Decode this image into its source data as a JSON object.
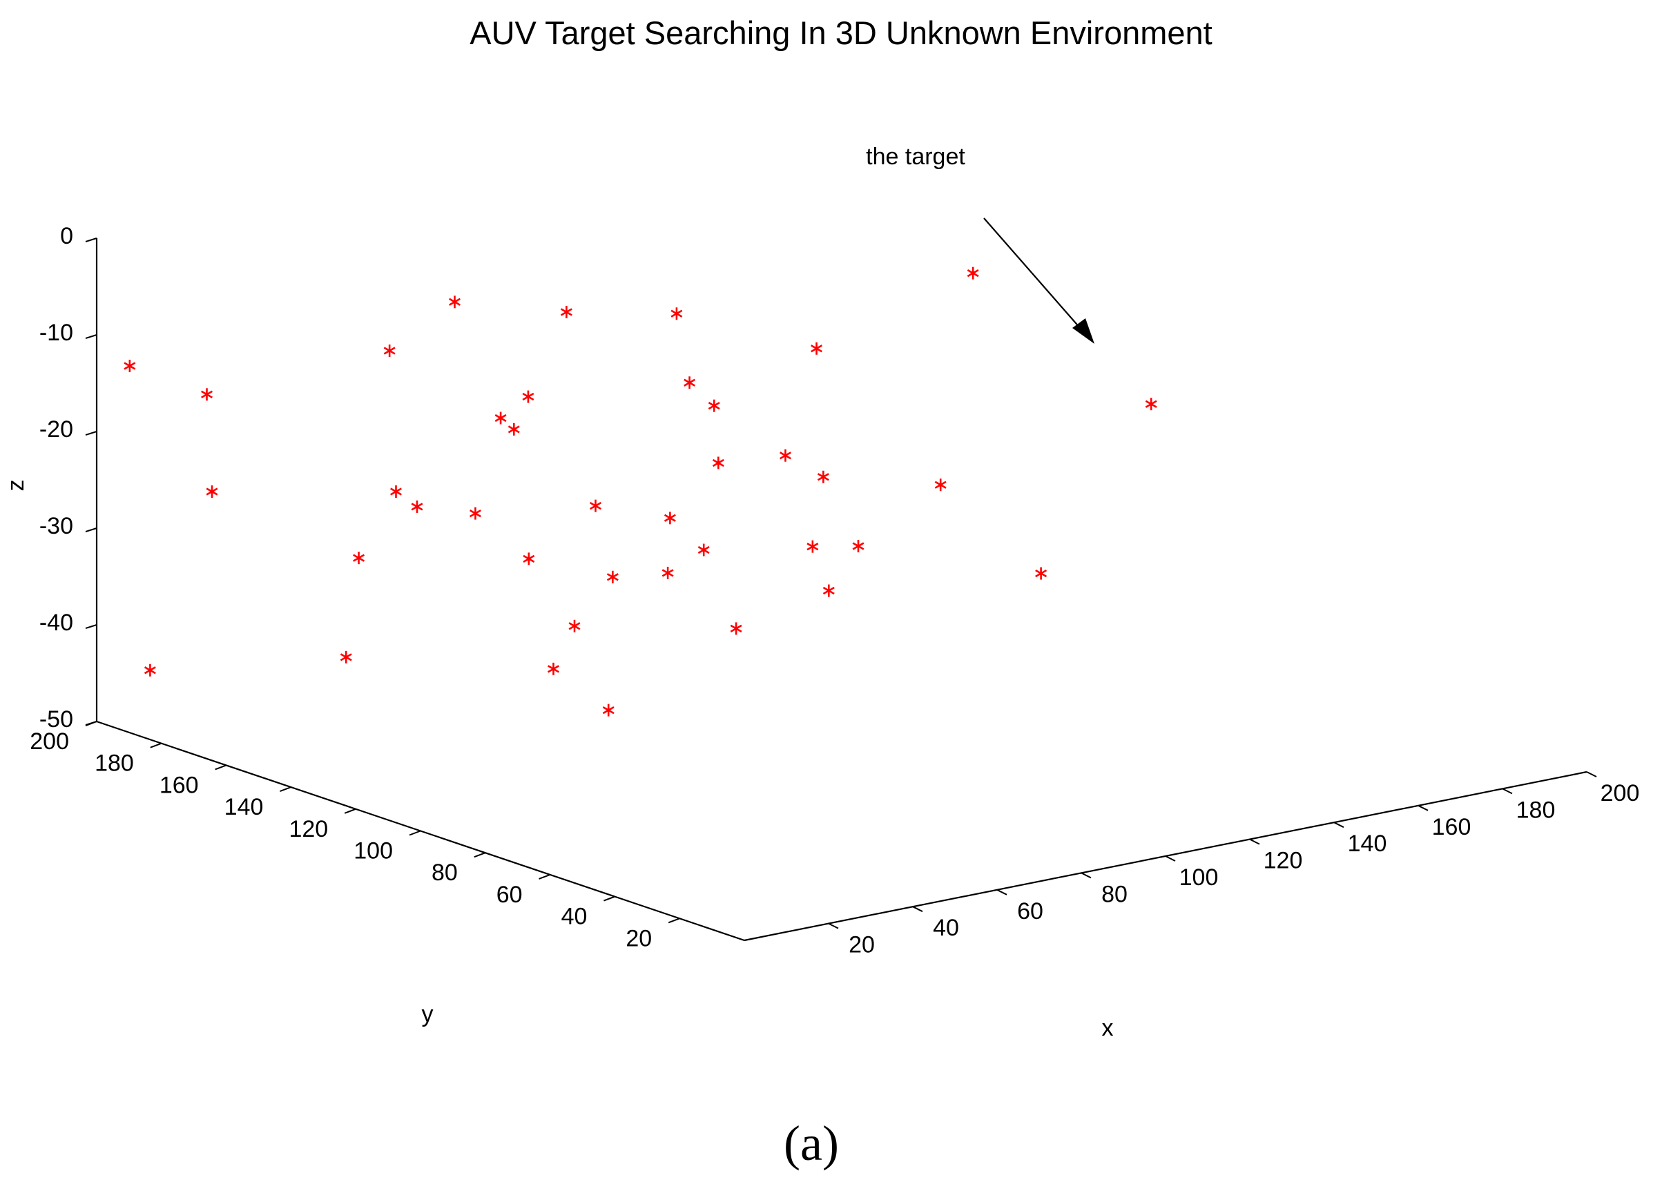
{
  "figure": {
    "caption": "(a)"
  },
  "chart_data": {
    "type": "scatter",
    "title": "AUV Target Searching In 3D Unknown Environment",
    "xlabel": "x",
    "ylabel": "y",
    "zlabel": "z",
    "xlim": [
      0,
      200
    ],
    "ylim": [
      0,
      200
    ],
    "zlim": [
      -50,
      0
    ],
    "x_ticks": [
      20,
      40,
      60,
      80,
      100,
      120,
      140,
      160,
      180,
      200
    ],
    "y_ticks": [
      20,
      40,
      60,
      80,
      100,
      120,
      140,
      160,
      180,
      200
    ],
    "z_ticks": [
      0,
      -10,
      -20,
      -30,
      -40,
      -50
    ],
    "grid": false,
    "marker": "*",
    "marker_color": "#ff0000",
    "annotation": {
      "text": "the target",
      "points_to_index": 0
    },
    "points": [
      {
        "x": 144,
        "y": 165,
        "z": -20
      },
      {
        "x": 175,
        "y": 157,
        "z": -14
      },
      {
        "x": 85,
        "y": 200,
        "z": -14
      },
      {
        "x": 110,
        "y": 198,
        "z": -17
      },
      {
        "x": 4,
        "y": 195,
        "z": -13
      },
      {
        "x": 20,
        "y": 192,
        "z": -17
      },
      {
        "x": 130,
        "y": 190,
        "z": -18
      },
      {
        "x": 58,
        "y": 185,
        "z": -15
      },
      {
        "x": 84,
        "y": 176,
        "z": -21
      },
      {
        "x": 79,
        "y": 178,
        "z": -23
      },
      {
        "x": 110,
        "y": 160,
        "z": -20
      },
      {
        "x": 12,
        "y": 180,
        "z": -25
      },
      {
        "x": 76,
        "y": 170,
        "z": -23
      },
      {
        "x": 112,
        "y": 155,
        "z": -22
      },
      {
        "x": 48,
        "y": 170,
        "z": -27
      },
      {
        "x": 113,
        "y": 155,
        "z": -28
      },
      {
        "x": 122,
        "y": 146,
        "z": -27
      },
      {
        "x": 195,
        "y": 128,
        "z": -26
      },
      {
        "x": 53,
        "y": 170,
        "z": -29
      },
      {
        "x": 63,
        "y": 165,
        "z": -30
      },
      {
        "x": 131,
        "y": 146,
        "z": -30
      },
      {
        "x": 80,
        "y": 150,
        "z": -29
      },
      {
        "x": 90,
        "y": 140,
        "z": -30
      },
      {
        "x": 43,
        "y": 175,
        "z": -34
      },
      {
        "x": 145,
        "y": 128,
        "z": -30
      },
      {
        "x": 68,
        "y": 155,
        "z": -34
      },
      {
        "x": 98,
        "y": 140,
        "z": -34
      },
      {
        "x": 81,
        "y": 146,
        "z": -36
      },
      {
        "x": 91,
        "y": 142,
        "z": -36
      },
      {
        "x": 120,
        "y": 135,
        "z": -35
      },
      {
        "x": 127,
        "y": 130,
        "z": -35
      },
      {
        "x": 120,
        "y": 130,
        "z": -39
      },
      {
        "x": 155,
        "y": 110,
        "z": -38
      },
      {
        "x": 40,
        "y": 175,
        "z": -44
      },
      {
        "x": 75,
        "y": 150,
        "z": -41
      },
      {
        "x": 98,
        "y": 130,
        "z": -41
      },
      {
        "x": 70,
        "y": 150,
        "z": -45
      },
      {
        "x": 5,
        "y": 190,
        "z": -44
      },
      {
        "x": 60,
        "y": 120,
        "z": -45
      }
    ]
  }
}
